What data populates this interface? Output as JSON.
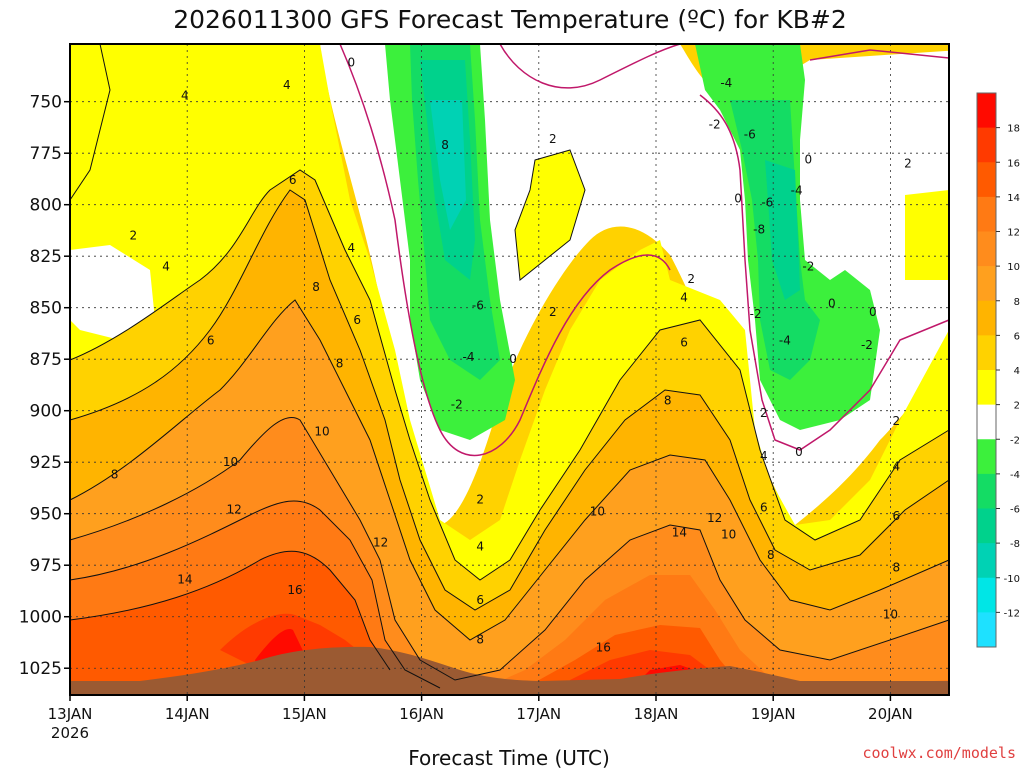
{
  "chart_data": {
    "type": "heatmap",
    "title": "2026011300  GFS Forecast Temperature (ºC) for KB#2",
    "xlabel": "Forecast Time (UTC)",
    "ylabel": "",
    "credit": "coolwx.com/models",
    "x_ticks": [
      "13JAN",
      "14JAN",
      "15JAN",
      "16JAN",
      "17JAN",
      "18JAN",
      "19JAN",
      "20JAN"
    ],
    "x_tick_year": "2026",
    "xlim": [
      0,
      7.5
    ],
    "y_ticks": [
      750,
      775,
      800,
      825,
      850,
      875,
      900,
      925,
      950,
      975,
      1000,
      1025
    ],
    "ylim": [
      722,
      1038
    ],
    "colorbar_levels": [
      18,
      16,
      14,
      12,
      10,
      8,
      6,
      4,
      2,
      -2,
      -4,
      -6,
      -8,
      -10,
      -12
    ],
    "colorbar_colors": [
      "#ff0a00",
      "#ff3a00",
      "#ff5a00",
      "#ff7a14",
      "#ff8c1c",
      "#ffa01e",
      "#ffb400",
      "#ffd200",
      "#ffff00",
      "#ffffff",
      "#3cf03c",
      "#14dc64",
      "#00d28c",
      "#00d2b4",
      "#00e6e6",
      "#1ee1ff"
    ],
    "contour_labels": [
      {
        "text": "0",
        "x": 2.4,
        "y": 731
      },
      {
        "text": "4",
        "x": 0.98,
        "y": 747
      },
      {
        "text": "4",
        "x": 1.85,
        "y": 742
      },
      {
        "text": "8",
        "x": 3.2,
        "y": 771
      },
      {
        "text": "2",
        "x": 4.12,
        "y": 768
      },
      {
        "text": "-4",
        "x": 5.6,
        "y": 741
      },
      {
        "text": "-2",
        "x": 5.5,
        "y": 761
      },
      {
        "text": "-6",
        "x": 5.8,
        "y": 766
      },
      {
        "text": "0",
        "x": 6.3,
        "y": 778
      },
      {
        "text": "2",
        "x": 7.15,
        "y": 780
      },
      {
        "text": "6",
        "x": 1.9,
        "y": 788
      },
      {
        "text": "2",
        "x": 0.54,
        "y": 815
      },
      {
        "text": "-4",
        "x": 6.2,
        "y": 793
      },
      {
        "text": "0",
        "x": 5.7,
        "y": 797
      },
      {
        "text": "-6",
        "x": 5.95,
        "y": 799
      },
      {
        "text": "-8",
        "x": 5.88,
        "y": 812
      },
      {
        "text": "4",
        "x": 0.82,
        "y": 830
      },
      {
        "text": "8",
        "x": 2.1,
        "y": 840
      },
      {
        "text": "4",
        "x": 2.4,
        "y": 821
      },
      {
        "text": "2",
        "x": 5.3,
        "y": 836
      },
      {
        "text": "-2",
        "x": 6.3,
        "y": 830
      },
      {
        "text": "4",
        "x": 5.24,
        "y": 845
      },
      {
        "text": "0",
        "x": 6.5,
        "y": 848
      },
      {
        "text": "-6",
        "x": 3.48,
        "y": 849
      },
      {
        "text": "6",
        "x": 2.45,
        "y": 856
      },
      {
        "text": "0",
        "x": 6.85,
        "y": 852
      },
      {
        "text": "-2",
        "x": 5.85,
        "y": 853
      },
      {
        "text": "2",
        "x": 4.12,
        "y": 852
      },
      {
        "text": "6",
        "x": 1.2,
        "y": 866
      },
      {
        "text": "-4",
        "x": 6.1,
        "y": 866
      },
      {
        "text": "6",
        "x": 5.24,
        "y": 867
      },
      {
        "text": "-2",
        "x": 6.8,
        "y": 868
      },
      {
        "text": "-4",
        "x": 3.4,
        "y": 874
      },
      {
        "text": "0",
        "x": 3.78,
        "y": 875
      },
      {
        "text": "8",
        "x": 2.3,
        "y": 877
      },
      {
        "text": "-2",
        "x": 3.3,
        "y": 897
      },
      {
        "text": "8",
        "x": 5.1,
        "y": 895
      },
      {
        "text": "2",
        "x": 5.92,
        "y": 901
      },
      {
        "text": "10",
        "x": 2.15,
        "y": 910
      },
      {
        "text": "2",
        "x": 7.05,
        "y": 905
      },
      {
        "text": "0",
        "x": 6.22,
        "y": 920
      },
      {
        "text": "10",
        "x": 1.37,
        "y": 925
      },
      {
        "text": "4",
        "x": 5.92,
        "y": 922
      },
      {
        "text": "4",
        "x": 7.05,
        "y": 927
      },
      {
        "text": "8",
        "x": 0.38,
        "y": 931
      },
      {
        "text": "2",
        "x": 3.5,
        "y": 943
      },
      {
        "text": "12",
        "x": 1.4,
        "y": 948
      },
      {
        "text": "10",
        "x": 4.5,
        "y": 949
      },
      {
        "text": "6",
        "x": 5.92,
        "y": 947
      },
      {
        "text": "6",
        "x": 7.05,
        "y": 951
      },
      {
        "text": "12",
        "x": 5.5,
        "y": 952
      },
      {
        "text": "10",
        "x": 5.62,
        "y": 960
      },
      {
        "text": "14",
        "x": 5.2,
        "y": 959
      },
      {
        "text": "12",
        "x": 2.65,
        "y": 964
      },
      {
        "text": "4",
        "x": 3.5,
        "y": 966
      },
      {
        "text": "8",
        "x": 5.98,
        "y": 970
      },
      {
        "text": "8",
        "x": 7.05,
        "y": 976
      },
      {
        "text": "14",
        "x": 0.98,
        "y": 982
      },
      {
        "text": "16",
        "x": 1.92,
        "y": 987
      },
      {
        "text": "6",
        "x": 3.5,
        "y": 992
      },
      {
        "text": "10",
        "x": 7.0,
        "y": 999
      },
      {
        "text": "8",
        "x": 3.5,
        "y": 1011
      },
      {
        "text": "16",
        "x": 4.55,
        "y": 1015
      }
    ]
  }
}
